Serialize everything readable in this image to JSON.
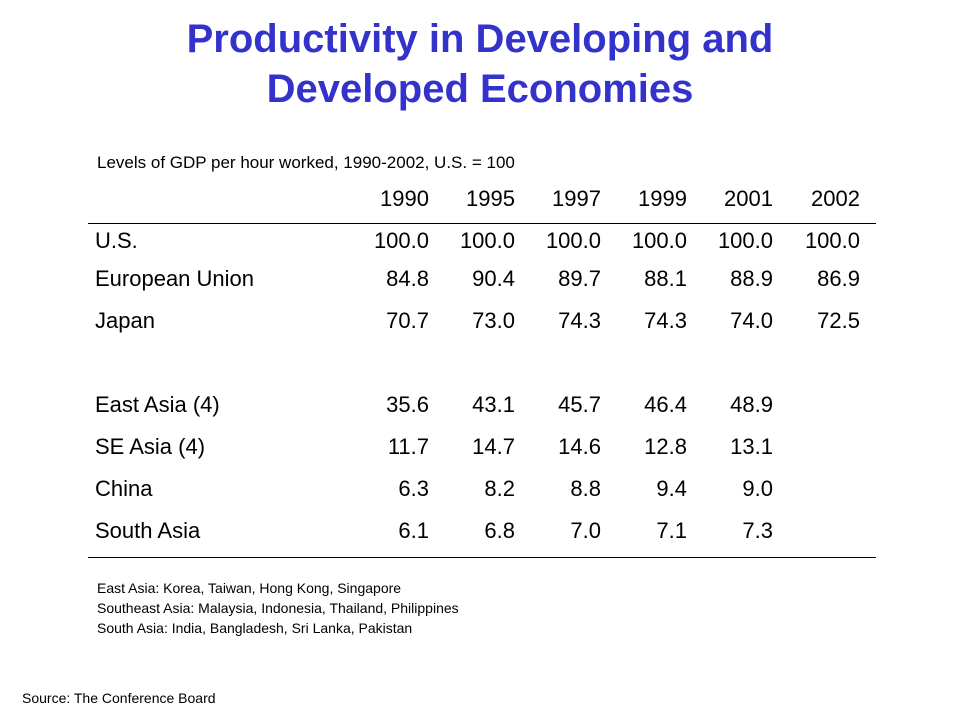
{
  "title_line1": "Productivity in Developing and",
  "title_line2": "Developed Economies",
  "subtitle": "Levels of GDP per hour worked, 1990-2002, U.S. = 100",
  "years": [
    "1990",
    "1995",
    "1997",
    "1999",
    "2001",
    "2002"
  ],
  "rows": [
    {
      "label": "U.S.",
      "values": [
        "100.0",
        "100.0",
        "100.0",
        "100.0",
        "100.0",
        "100.0"
      ]
    },
    {
      "label": "European Union",
      "values": [
        "84.8",
        "90.4",
        "89.7",
        "88.1",
        "88.9",
        "86.9"
      ]
    },
    {
      "label": "Japan",
      "values": [
        "70.7",
        "73.0",
        "74.3",
        "74.3",
        "74.0",
        "72.5"
      ]
    },
    {
      "label": "East Asia (4)",
      "values": [
        "35.6",
        "43.1",
        "45.7",
        "46.4",
        "48.9",
        ""
      ]
    },
    {
      "label": "SE Asia (4)",
      "values": [
        "11.7",
        "14.7",
        "14.6",
        "12.8",
        "13.1",
        ""
      ]
    },
    {
      "label": "China",
      "values": [
        "6.3",
        "8.2",
        "8.8",
        "9.4",
        "9.0",
        ""
      ]
    },
    {
      "label": "South Asia",
      "values": [
        "6.1",
        "6.8",
        "7.0",
        "7.1",
        "7.3",
        ""
      ]
    }
  ],
  "notes": [
    "East Asia:  Korea, Taiwan, Hong Kong, Singapore",
    "Southeast Asia:  Malaysia, Indonesia, Thailand, Philippines",
    "South Asia:  India, Bangladesh, Sri Lanka, Pakistan"
  ],
  "source": "Source:  The Conference Board",
  "colors": {
    "title": "#3333cc",
    "text": "#000000",
    "background": "#ffffff"
  }
}
